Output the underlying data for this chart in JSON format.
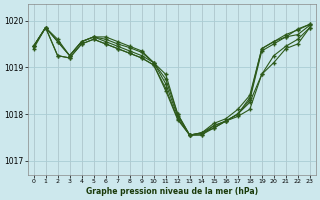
{
  "title": "Graphe pression niveau de la mer (hPa)",
  "bg_color": "#cde8ed",
  "grid_color": "#aacdd4",
  "line_color": "#2d5a1b",
  "xlim": [
    -0.5,
    23.5
  ],
  "ylim": [
    1016.7,
    1020.35
  ],
  "yticks": [
    1017,
    1018,
    1019,
    1020
  ],
  "xticks": [
    0,
    1,
    2,
    3,
    4,
    5,
    6,
    7,
    8,
    9,
    10,
    11,
    12,
    13,
    14,
    15,
    16,
    17,
    18,
    19,
    20,
    21,
    22,
    23
  ],
  "series": [
    [
      1019.45,
      1019.85,
      1019.6,
      1019.25,
      1019.55,
      1019.65,
      1019.65,
      1019.55,
      1019.45,
      1019.35,
      1019.1,
      1018.85,
      1018.0,
      1017.55,
      1017.55,
      1017.75,
      1017.85,
      1017.95,
      1018.1,
      1018.85,
      1019.25,
      1019.45,
      1019.6,
      1019.85
    ],
    [
      1019.45,
      1019.85,
      1019.55,
      1019.25,
      1019.55,
      1019.65,
      1019.6,
      1019.5,
      1019.42,
      1019.32,
      1019.1,
      1018.75,
      1018.0,
      1017.55,
      1017.56,
      1017.7,
      1017.85,
      1018.0,
      1018.3,
      1019.35,
      1019.5,
      1019.65,
      1019.7,
      1019.9
    ],
    [
      1019.45,
      1019.85,
      1019.55,
      1019.25,
      1019.55,
      1019.65,
      1019.55,
      1019.45,
      1019.35,
      1019.25,
      1019.1,
      1018.65,
      1017.95,
      1017.55,
      1017.6,
      1017.7,
      1017.85,
      1018.0,
      1018.35,
      1019.4,
      1019.55,
      1019.7,
      1019.8,
      1019.92
    ],
    [
      1019.45,
      1019.85,
      1019.25,
      1019.2,
      1019.5,
      1019.6,
      1019.5,
      1019.4,
      1019.3,
      1019.2,
      1019.05,
      1018.55,
      1017.9,
      1017.55,
      1017.6,
      1017.75,
      1017.85,
      1018.0,
      1018.25,
      1018.85,
      1019.1,
      1019.4,
      1019.5,
      1019.85
    ],
    [
      1019.4,
      1019.85,
      1019.25,
      1019.2,
      1019.5,
      1019.6,
      1019.5,
      1019.4,
      1019.3,
      1019.2,
      1019.05,
      1018.5,
      1017.88,
      1017.55,
      1017.6,
      1017.8,
      1017.9,
      1018.1,
      1018.4,
      1019.4,
      1019.55,
      1019.65,
      1019.82,
      1019.92
    ]
  ]
}
